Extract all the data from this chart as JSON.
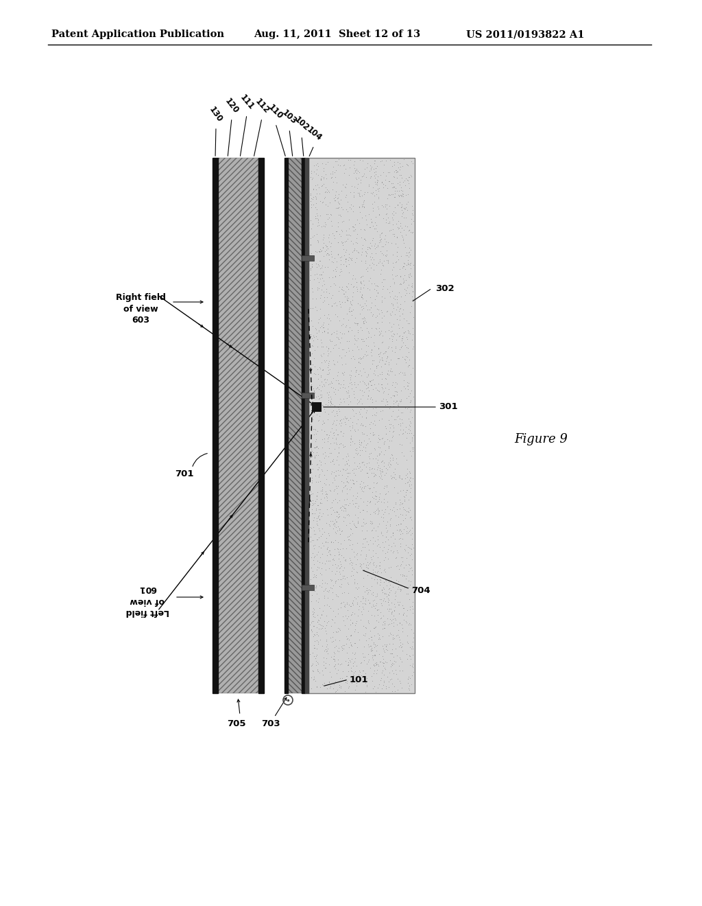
{
  "header_left": "Patent Application Publication",
  "header_mid": "Aug. 11, 2011  Sheet 12 of 13",
  "header_right": "US 2011/0193822 A1",
  "figure_label": "Figure 9",
  "bg_color": "#ffffff",
  "header_fontsize": 10.5,
  "figure_label_fontsize": 13,
  "annotation_fontsize": 9.5,
  "hatch_color": "#aaaaaa",
  "dot_color": "#c8c8c8",
  "dark_color": "#111111",
  "zigzag_color": "#888888"
}
